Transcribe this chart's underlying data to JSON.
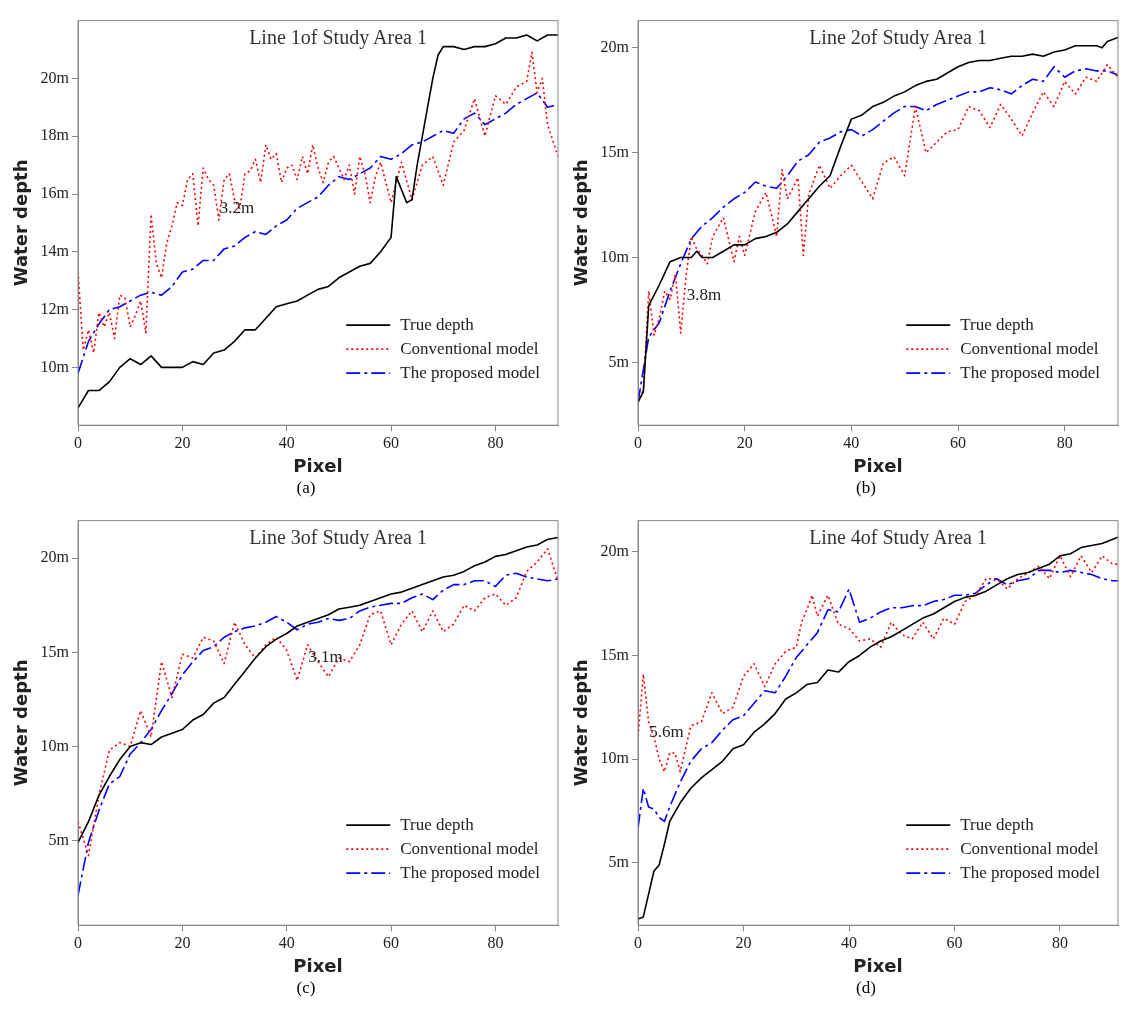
{
  "chart_data": [
    {
      "type": "line",
      "title": "Line 1of Study Area 1",
      "xlabel": "Pixel",
      "ylabel": "Water depth",
      "xlim": [
        0,
        92
      ],
      "xticks": [
        0,
        20,
        40,
        60,
        80
      ],
      "ylim": [
        8,
        22
      ],
      "yticks": [
        {
          "value": 10,
          "label": "10m"
        },
        {
          "value": 12,
          "label": "12m"
        },
        {
          "value": 14,
          "label": "14m"
        },
        {
          "value": 16,
          "label": "16m"
        },
        {
          "value": 18,
          "label": "18m"
        },
        {
          "value": 20,
          "label": "20m"
        }
      ],
      "legend": "bottom right",
      "annotations": [
        {
          "text": "3.2m",
          "x": 26,
          "y": 15.5
        },
        "(a)"
      ],
      "series": [
        {
          "name": "True depth",
          "color": "#000000",
          "line_style": "solid",
          "x": [
            0,
            2,
            4,
            6,
            8,
            10,
            12,
            14,
            16,
            18,
            20,
            22,
            24,
            26,
            28,
            30,
            32,
            34,
            36,
            38,
            40,
            42,
            44,
            46,
            48,
            50,
            52,
            54,
            56,
            58,
            60,
            61,
            63,
            64,
            65,
            66,
            68,
            69,
            70,
            72,
            74,
            76,
            78,
            80,
            82,
            84,
            86,
            88,
            90,
            92
          ],
          "values": [
            8.6,
            9.2,
            9.2,
            9.5,
            10.0,
            10.3,
            10.1,
            10.4,
            10.0,
            10.0,
            10.0,
            10.2,
            10.1,
            10.5,
            10.6,
            10.9,
            11.3,
            11.3,
            11.7,
            12.1,
            12.2,
            12.3,
            12.5,
            12.7,
            12.8,
            13.1,
            13.3,
            13.5,
            13.6,
            14.0,
            14.5,
            16.6,
            15.7,
            15.8,
            17.0,
            18.0,
            20.0,
            20.8,
            21.1,
            21.1,
            21.0,
            21.1,
            21.1,
            21.2,
            21.4,
            21.4,
            21.5,
            21.3,
            21.5,
            21.5
          ]
        },
        {
          "name": "Conventional model",
          "color": "#ff0000",
          "line_style": "dotted",
          "x": [
            0,
            1,
            2,
            3,
            4,
            5,
            6,
            7,
            8,
            9,
            10,
            11,
            12,
            13,
            14,
            15,
            16,
            17,
            18,
            19,
            20,
            21,
            22,
            23,
            24,
            25,
            26,
            27,
            28,
            29,
            30,
            31,
            32,
            33,
            34,
            35,
            36,
            37,
            38,
            39,
            40,
            41,
            42,
            43,
            44,
            45,
            46,
            47,
            48,
            49,
            50,
            51,
            52,
            53,
            54,
            55,
            56,
            57,
            58,
            60,
            62,
            64,
            66,
            68,
            70,
            72,
            74,
            76,
            78,
            80,
            82,
            84,
            86,
            87,
            88,
            89,
            90,
            92
          ],
          "values": [
            13.3,
            10.6,
            11.3,
            10.5,
            11.9,
            11.4,
            11.9,
            11.0,
            12.5,
            12.4,
            11.4,
            11.8,
            12.3,
            11.2,
            15.3,
            13.6,
            13.1,
            14.3,
            14.9,
            15.7,
            15.6,
            16.5,
            16.7,
            14.9,
            16.9,
            16.5,
            16.3,
            15.1,
            16.5,
            16.7,
            15.8,
            15.5,
            16.7,
            16.8,
            17.2,
            16.4,
            17.7,
            17.2,
            17.4,
            16.4,
            16.9,
            17.0,
            16.5,
            17.3,
            16.7,
            17.7,
            16.9,
            16.4,
            17.1,
            17.3,
            16.9,
            16.5,
            17.0,
            16.0,
            17.3,
            16.7,
            15.7,
            16.6,
            17.1,
            15.7,
            17.1,
            15.8,
            17.0,
            17.3,
            16.3,
            17.8,
            18.2,
            19.3,
            18.0,
            19.4,
            19.1,
            19.7,
            19.9,
            20.9,
            19.5,
            20.0,
            18.4,
            17.3
          ]
        },
        {
          "name": "The proposed model",
          "color": "#0000ff",
          "line_style": "dashed",
          "x": [
            0,
            2,
            4,
            6,
            8,
            10,
            12,
            14,
            16,
            18,
            20,
            22,
            24,
            26,
            28,
            30,
            32,
            34,
            36,
            38,
            40,
            42,
            44,
            46,
            48,
            50,
            52,
            54,
            56,
            58,
            60,
            62,
            64,
            66,
            68,
            70,
            72,
            74,
            76,
            78,
            80,
            82,
            84,
            86,
            88,
            90,
            92
          ],
          "values": [
            9.8,
            10.9,
            11.5,
            12.0,
            12.1,
            12.3,
            12.5,
            12.6,
            12.5,
            12.8,
            13.3,
            13.4,
            13.7,
            13.7,
            14.1,
            14.2,
            14.5,
            14.7,
            14.6,
            14.9,
            15.1,
            15.5,
            15.7,
            15.9,
            16.3,
            16.6,
            16.5,
            16.7,
            16.9,
            17.3,
            17.2,
            17.4,
            17.7,
            17.8,
            18.0,
            18.2,
            18.1,
            18.6,
            18.8,
            18.4,
            18.6,
            18.8,
            19.1,
            19.3,
            19.5,
            19.0,
            19.1
          ]
        }
      ]
    },
    {
      "type": "line",
      "title": "Line 2of Study Area 1",
      "xlabel": "Pixel",
      "ylabel": "Water depth",
      "xlim": [
        0,
        90
      ],
      "xticks": [
        0,
        20,
        40,
        60,
        80
      ],
      "ylim": [
        2,
        21.3
      ],
      "yticks": [
        {
          "value": 5,
          "label": "5m"
        },
        {
          "value": 10,
          "label": "10m"
        },
        {
          "value": 15,
          "label": "15m"
        },
        {
          "value": 20,
          "label": "20m"
        }
      ],
      "legend": "bottom right",
      "annotations": [
        {
          "text": "3.8m",
          "x": 8,
          "y": 8.2
        },
        "(b)"
      ],
      "series": [
        {
          "name": "True depth",
          "color": "#000000",
          "line_style": "solid",
          "x": [
            0,
            1,
            2,
            4,
            6,
            8,
            10,
            11,
            12,
            14,
            16,
            18,
            20,
            22,
            24,
            26,
            28,
            30,
            32,
            34,
            36,
            38,
            40,
            42,
            44,
            46,
            48,
            50,
            52,
            54,
            56,
            58,
            60,
            62,
            64,
            66,
            68,
            70,
            72,
            74,
            76,
            78,
            80,
            82,
            84,
            86,
            87,
            88,
            90
          ],
          "values": [
            3.1,
            3.6,
            7.7,
            8.7,
            9.8,
            10.0,
            10.0,
            10.3,
            10.0,
            10.0,
            10.3,
            10.6,
            10.6,
            10.9,
            11.0,
            11.2,
            11.6,
            12.2,
            12.8,
            13.4,
            13.9,
            15.3,
            16.6,
            16.8,
            17.2,
            17.4,
            17.7,
            17.9,
            18.2,
            18.4,
            18.5,
            18.8,
            19.1,
            19.3,
            19.4,
            19.4,
            19.5,
            19.6,
            19.6,
            19.7,
            19.6,
            19.8,
            19.9,
            20.1,
            20.1,
            20.1,
            20.0,
            20.3,
            20.5
          ]
        },
        {
          "name": "Conventional model",
          "color": "#ff0000",
          "line_style": "dotted",
          "x": [
            0,
            1,
            2,
            3,
            4,
            5,
            6,
            7,
            8,
            9,
            10,
            11,
            12,
            13,
            14,
            16,
            18,
            19,
            20,
            22,
            24,
            26,
            27,
            28,
            30,
            31,
            32,
            34,
            36,
            38,
            40,
            42,
            44,
            46,
            48,
            50,
            52,
            54,
            56,
            58,
            60,
            62,
            64,
            66,
            68,
            70,
            72,
            74,
            76,
            78,
            80,
            82,
            84,
            86,
            88,
            90
          ],
          "values": [
            3.1,
            3.7,
            8.4,
            6.3,
            7.1,
            8.4,
            8.0,
            9.2,
            6.4,
            9.1,
            11.0,
            10.4,
            10.1,
            9.7,
            11.0,
            11.9,
            9.8,
            11.0,
            10.1,
            12.2,
            13.1,
            11.0,
            14.2,
            12.8,
            13.8,
            10.1,
            13.0,
            14.4,
            13.3,
            13.9,
            14.4,
            13.6,
            12.8,
            14.5,
            14.8,
            13.9,
            17.2,
            15.0,
            15.5,
            16.0,
            16.1,
            17.2,
            17.0,
            16.2,
            17.3,
            16.6,
            15.8,
            16.9,
            17.9,
            17.2,
            18.4,
            17.8,
            18.6,
            18.4,
            19.2,
            18.6
          ]
        },
        {
          "name": "The proposed model",
          "color": "#0000ff",
          "line_style": "dashed",
          "x": [
            0,
            2,
            4,
            6,
            8,
            10,
            12,
            14,
            16,
            18,
            20,
            22,
            24,
            26,
            28,
            30,
            32,
            34,
            36,
            38,
            40,
            42,
            44,
            46,
            48,
            50,
            52,
            54,
            56,
            58,
            60,
            62,
            64,
            66,
            68,
            70,
            72,
            74,
            76,
            78,
            80,
            82,
            84,
            86,
            88,
            90
          ],
          "values": [
            3.1,
            6.2,
            6.9,
            8.4,
            9.7,
            10.9,
            11.5,
            11.9,
            12.4,
            12.8,
            13.1,
            13.6,
            13.4,
            13.3,
            13.9,
            14.6,
            14.9,
            15.5,
            15.7,
            16.0,
            16.1,
            15.8,
            16.1,
            16.5,
            16.9,
            17.2,
            17.2,
            17.0,
            17.3,
            17.5,
            17.7,
            17.9,
            17.9,
            18.1,
            18.0,
            17.8,
            18.2,
            18.5,
            18.4,
            19.1,
            18.6,
            18.9,
            19.0,
            18.9,
            18.9,
            18.7
          ]
        }
      ]
    },
    {
      "type": "line",
      "title": "Line 3of Study Area 1",
      "xlabel": "Pixel",
      "ylabel": "Water depth",
      "xlim": [
        0,
        92
      ],
      "xticks": [
        0,
        20,
        40,
        60,
        80
      ],
      "ylim": [
        0.5,
        22
      ],
      "yticks": [
        {
          "value": 5,
          "label": "5m"
        },
        {
          "value": 10,
          "label": "10m"
        },
        {
          "value": 15,
          "label": "15m"
        },
        {
          "value": 20,
          "label": "20m"
        }
      ],
      "legend": "bottom right",
      "annotations": [
        {
          "text": "3.1m",
          "x": 43,
          "y": 14.7
        },
        "(c)"
      ],
      "series": [
        {
          "name": "True depth",
          "color": "#000000",
          "line_style": "solid",
          "x": [
            0,
            2,
            4,
            6,
            8,
            10,
            12,
            14,
            16,
            18,
            20,
            22,
            24,
            26,
            28,
            30,
            32,
            34,
            36,
            38,
            40,
            42,
            44,
            46,
            48,
            50,
            52,
            54,
            56,
            58,
            60,
            62,
            64,
            66,
            68,
            70,
            72,
            74,
            76,
            78,
            80,
            82,
            84,
            86,
            88,
            90,
            92
          ],
          "values": [
            4.9,
            6.0,
            7.4,
            8.4,
            9.3,
            10.0,
            10.2,
            10.1,
            10.5,
            10.7,
            10.9,
            11.4,
            11.7,
            12.3,
            12.6,
            13.3,
            14.0,
            14.7,
            15.3,
            15.7,
            16.0,
            16.4,
            16.6,
            16.8,
            17.0,
            17.3,
            17.4,
            17.5,
            17.7,
            17.9,
            18.1,
            18.2,
            18.4,
            18.6,
            18.8,
            19.0,
            19.1,
            19.3,
            19.6,
            19.8,
            20.1,
            20.2,
            20.4,
            20.6,
            20.7,
            21.0,
            21.1
          ]
        },
        {
          "name": "Conventional model",
          "color": "#ff0000",
          "line_style": "dotted",
          "x": [
            0,
            2,
            4,
            6,
            8,
            10,
            12,
            14,
            16,
            18,
            20,
            22,
            24,
            26,
            28,
            30,
            32,
            34,
            36,
            38,
            40,
            42,
            44,
            46,
            48,
            50,
            52,
            54,
            56,
            58,
            60,
            62,
            64,
            66,
            68,
            70,
            72,
            74,
            76,
            78,
            80,
            82,
            84,
            86,
            88,
            90,
            92
          ],
          "values": [
            6.0,
            4.2,
            7.4,
            9.8,
            10.2,
            10.0,
            11.9,
            10.5,
            14.5,
            12.6,
            14.9,
            14.7,
            15.8,
            15.6,
            14.4,
            16.6,
            15.4,
            14.7,
            15.4,
            15.8,
            15.1,
            13.5,
            15.4,
            14.5,
            13.7,
            14.7,
            14.5,
            15.4,
            17.0,
            17.2,
            15.4,
            16.5,
            17.2,
            16.1,
            17.2,
            16.1,
            16.5,
            17.5,
            17.2,
            17.9,
            18.1,
            17.5,
            17.9,
            19.3,
            19.8,
            20.5,
            18.8
          ]
        },
        {
          "name": "The proposed model",
          "color": "#0000ff",
          "line_style": "dashed",
          "x": [
            0,
            2,
            4,
            6,
            8,
            10,
            12,
            14,
            16,
            18,
            20,
            22,
            24,
            26,
            28,
            30,
            32,
            34,
            36,
            38,
            40,
            42,
            44,
            46,
            48,
            50,
            52,
            54,
            56,
            58,
            60,
            62,
            64,
            66,
            68,
            70,
            72,
            74,
            76,
            78,
            80,
            82,
            84,
            86,
            88,
            90,
            92
          ],
          "values": [
            2.1,
            4.9,
            6.6,
            8.0,
            8.4,
            9.6,
            10.2,
            10.9,
            11.9,
            12.8,
            13.8,
            14.5,
            15.1,
            15.3,
            15.8,
            16.1,
            16.3,
            16.4,
            16.6,
            16.9,
            16.6,
            16.2,
            16.5,
            16.6,
            16.8,
            16.7,
            16.8,
            17.2,
            17.4,
            17.5,
            17.6,
            17.6,
            17.9,
            18.1,
            17.8,
            18.3,
            18.6,
            18.6,
            18.8,
            18.8,
            18.5,
            19.1,
            19.2,
            19.0,
            18.9,
            18.8,
            18.9
          ]
        }
      ]
    },
    {
      "type": "line",
      "title": "Line 4of Study Area 1",
      "xlabel": "Pixel",
      "ylabel": "Water depth",
      "xlim": [
        0,
        91
      ],
      "xticks": [
        0,
        20,
        40,
        60,
        80
      ],
      "ylim": [
        2,
        21.5
      ],
      "yticks": [
        {
          "value": 5,
          "label": "5m"
        },
        {
          "value": 10,
          "label": "10m"
        },
        {
          "value": 15,
          "label": "15m"
        },
        {
          "value": 20,
          "label": "20m"
        }
      ],
      "legend": "bottom right",
      "annotations": [
        {
          "text": "5.6m",
          "x": 1,
          "y": 11.3
        },
        "(d)"
      ],
      "series": [
        {
          "name": "True depth",
          "color": "#000000",
          "line_style": "solid",
          "x": [
            0,
            1,
            2,
            3,
            4,
            5,
            6,
            8,
            10,
            12,
            14,
            16,
            18,
            20,
            22,
            24,
            26,
            28,
            30,
            32,
            34,
            36,
            38,
            40,
            42,
            44,
            46,
            48,
            50,
            52,
            54,
            56,
            58,
            60,
            62,
            64,
            66,
            68,
            70,
            72,
            74,
            76,
            78,
            80,
            82,
            84,
            86,
            88,
            90,
            91
          ],
          "values": [
            2.3,
            2.4,
            3.5,
            4.6,
            4.9,
            5.9,
            7.0,
            7.9,
            8.6,
            9.1,
            9.5,
            9.9,
            10.5,
            10.7,
            11.3,
            11.7,
            12.2,
            12.9,
            13.2,
            13.6,
            13.7,
            14.3,
            14.2,
            14.7,
            15.0,
            15.4,
            15.7,
            15.9,
            16.2,
            16.5,
            16.8,
            17.0,
            17.3,
            17.6,
            17.8,
            17.9,
            18.1,
            18.4,
            18.7,
            18.9,
            19.0,
            19.2,
            19.4,
            19.8,
            19.9,
            20.2,
            20.3,
            20.4,
            20.6,
            20.7
          ]
        },
        {
          "name": "Conventional model",
          "color": "#ff0000",
          "line_style": "dotted",
          "x": [
            0,
            1,
            2,
            3,
            4,
            5,
            6,
            7,
            8,
            10,
            12,
            14,
            16,
            18,
            20,
            22,
            24,
            26,
            28,
            30,
            31,
            32,
            33,
            34,
            36,
            38,
            40,
            42,
            44,
            46,
            48,
            50,
            52,
            54,
            56,
            58,
            60,
            62,
            64,
            66,
            68,
            70,
            72,
            74,
            76,
            78,
            80,
            82,
            84,
            86,
            88,
            90,
            91
          ],
          "values": [
            11.1,
            14.1,
            11.8,
            11.1,
            10.0,
            9.4,
            10.3,
            10.3,
            9.4,
            11.6,
            11.8,
            13.2,
            12.2,
            12.5,
            14.0,
            14.6,
            13.5,
            14.6,
            15.2,
            15.4,
            16.6,
            17.2,
            17.9,
            16.9,
            17.9,
            16.5,
            16.3,
            15.7,
            15.8,
            15.4,
            16.6,
            16.0,
            15.8,
            16.6,
            15.8,
            16.8,
            16.5,
            17.6,
            17.9,
            18.7,
            18.7,
            18.2,
            18.7,
            19.0,
            19.3,
            18.7,
            19.8,
            18.8,
            19.8,
            19.0,
            19.8,
            19.4,
            19.4
          ]
        },
        {
          "name": "The proposed model",
          "color": "#0000ff",
          "line_style": "dashed",
          "x": [
            0,
            1,
            2,
            3,
            4,
            5,
            6,
            8,
            10,
            12,
            14,
            16,
            18,
            20,
            22,
            24,
            26,
            28,
            30,
            32,
            34,
            36,
            38,
            40,
            42,
            44,
            46,
            48,
            50,
            52,
            54,
            56,
            58,
            60,
            62,
            64,
            66,
            68,
            70,
            72,
            74,
            76,
            78,
            80,
            82,
            84,
            86,
            88,
            90,
            91
          ],
          "values": [
            6.7,
            8.6,
            7.7,
            7.6,
            7.2,
            7.0,
            7.7,
            8.9,
            9.9,
            10.5,
            10.8,
            11.4,
            11.9,
            12.1,
            12.7,
            13.3,
            13.2,
            14.0,
            14.9,
            15.5,
            16.1,
            17.2,
            17.1,
            18.2,
            16.6,
            16.8,
            17.1,
            17.3,
            17.3,
            17.4,
            17.4,
            17.6,
            17.7,
            17.9,
            17.9,
            18.0,
            18.4,
            18.7,
            18.4,
            18.6,
            18.7,
            19.1,
            19.1,
            19.0,
            19.1,
            19.0,
            18.9,
            18.7,
            18.6,
            18.6
          ]
        }
      ]
    }
  ]
}
